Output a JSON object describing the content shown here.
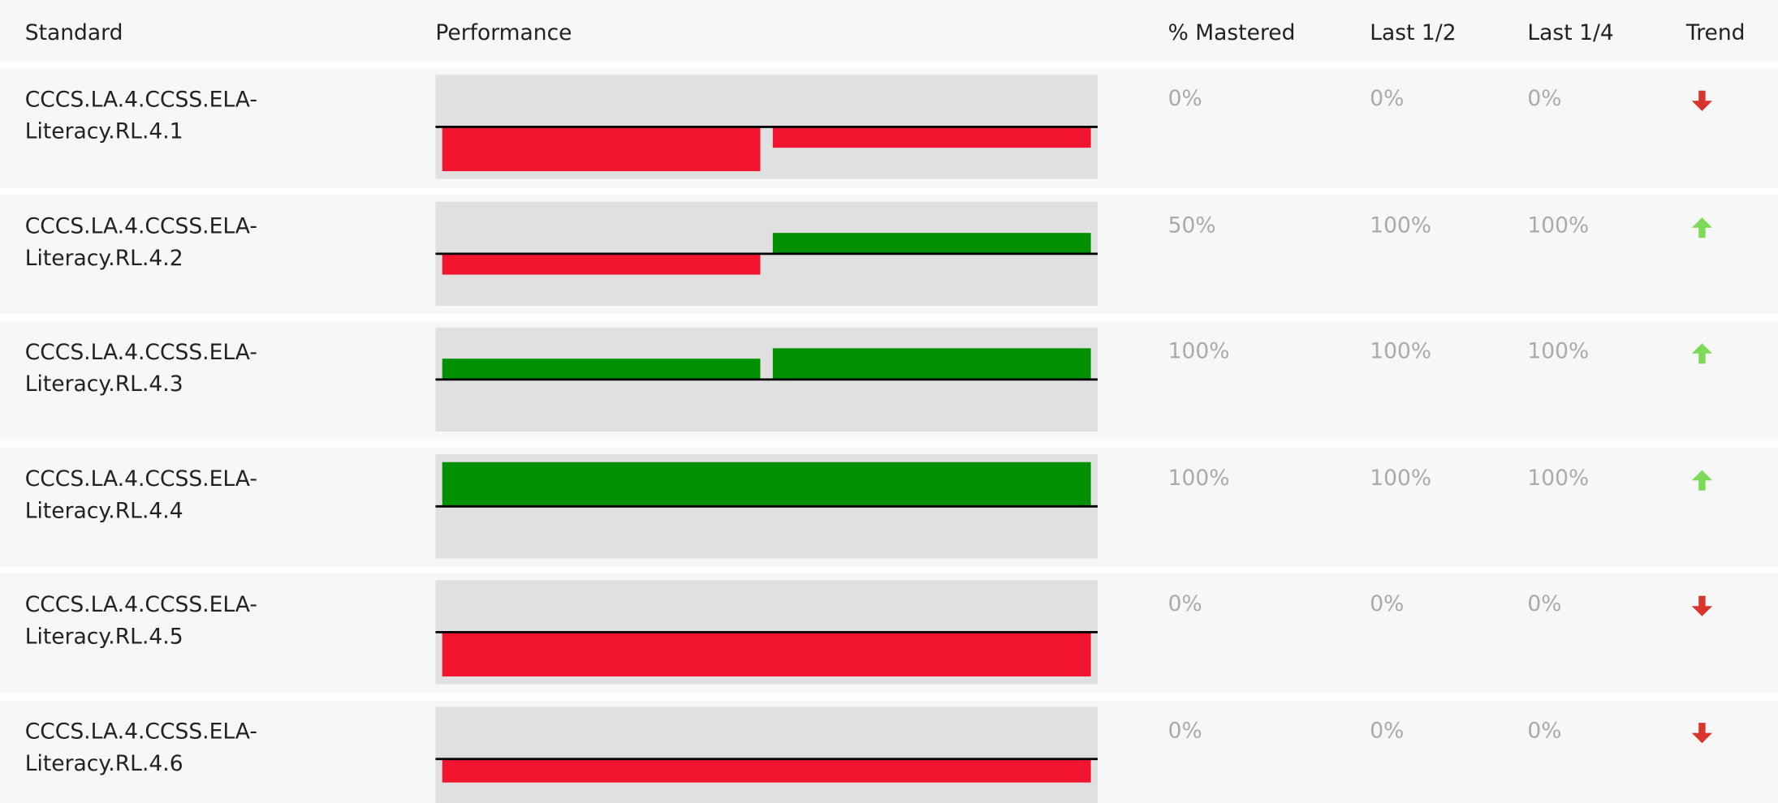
{
  "table": {
    "columns": [
      "Standard",
      "Performance",
      "% Mastered",
      "Last 1/2",
      "Last 1/4",
      "Trend"
    ],
    "performance_ylim": [
      -1,
      1
    ],
    "colors": {
      "above": "#009000",
      "below": "#f0142f",
      "up": "#7ed957",
      "down": "#d9342b"
    },
    "rows": [
      {
        "standard": "CCCS.LA.4.CCSS.ELA-Literacy.RL.4.1",
        "performance": [
          -0.85,
          -0.4
        ],
        "mastered": "0%",
        "last_half": "0%",
        "last_quarter": "0%",
        "trend": "down"
      },
      {
        "standard": "CCCS.LA.4.CCSS.ELA-Literacy.RL.4.2",
        "performance": [
          -0.4,
          0.4
        ],
        "mastered": "50%",
        "last_half": "100%",
        "last_quarter": "100%",
        "trend": "up"
      },
      {
        "standard": "CCCS.LA.4.CCSS.ELA-Literacy.RL.4.3",
        "performance": [
          0.4,
          0.6
        ],
        "mastered": "100%",
        "last_half": "100%",
        "last_quarter": "100%",
        "trend": "up"
      },
      {
        "standard": "CCCS.LA.4.CCSS.ELA-Literacy.RL.4.4",
        "performance": [
          0.85
        ],
        "mastered": "100%",
        "last_half": "100%",
        "last_quarter": "100%",
        "trend": "up"
      },
      {
        "standard": "CCCS.LA.4.CCSS.ELA-Literacy.RL.4.5",
        "performance": [
          -0.85
        ],
        "mastered": "0%",
        "last_half": "0%",
        "last_quarter": "0%",
        "trend": "down"
      },
      {
        "standard": "CCCS.LA.4.CCSS.ELA-Literacy.RL.4.6",
        "performance": [
          -0.45
        ],
        "mastered": "0%",
        "last_half": "0%",
        "last_quarter": "0%",
        "trend": "down"
      }
    ]
  }
}
